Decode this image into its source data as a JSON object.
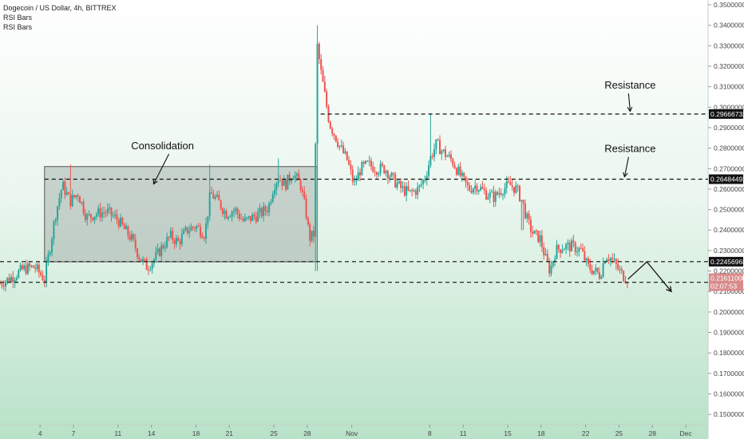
{
  "chart_data": {
    "type": "candlestick",
    "title": "Dogecoin / US Dollar, 4h, BITTREX",
    "indicators": [
      "RSI Bars",
      "RSI Bars"
    ],
    "ylim": [
      0.145,
      0.35
    ],
    "y_ticks": [
      "0.35000000",
      "0.34000000",
      "0.33000000",
      "0.32000000",
      "0.31000000",
      "0.30000000",
      "0.29000000",
      "0.28000000",
      "0.27000000",
      "0.26000000",
      "0.25000000",
      "0.24000000",
      "0.23000000",
      "0.22000000",
      "0.21000000",
      "0.20000000",
      "0.19000000",
      "0.18000000",
      "0.17000000",
      "0.16000000",
      "0.15000000"
    ],
    "x_ticks": [
      {
        "label": "4",
        "day": 0
      },
      {
        "label": "7",
        "day": 3
      },
      {
        "label": "11",
        "day": 7
      },
      {
        "label": "14",
        "day": 10
      },
      {
        "label": "18",
        "day": 14
      },
      {
        "label": "21",
        "day": 17
      },
      {
        "label": "25",
        "day": 21
      },
      {
        "label": "28",
        "day": 24
      },
      {
        "label": "Nov",
        "day": 28
      },
      {
        "label": "8",
        "day": 35
      },
      {
        "label": "11",
        "day": 38
      },
      {
        "label": "15",
        "day": 42
      },
      {
        "label": "18",
        "day": 45
      },
      {
        "label": "22",
        "day": 49
      },
      {
        "label": "25",
        "day": 52
      },
      {
        "label": "28",
        "day": 55
      },
      {
        "label": "Dec",
        "day": 58
      }
    ],
    "x_range_days": [
      -3.6,
      60
    ],
    "price_path": [
      [
        -3.6,
        0.214
      ],
      [
        -2.5,
        0.217
      ],
      [
        -1.5,
        0.221
      ],
      [
        -0.5,
        0.222
      ],
      [
        0.4,
        0.216
      ],
      [
        0.9,
        0.232
      ],
      [
        1.4,
        0.248
      ],
      [
        2,
        0.262
      ],
      [
        2.7,
        0.254
      ],
      [
        3.4,
        0.258
      ],
      [
        4.2,
        0.246
      ],
      [
        5,
        0.248
      ],
      [
        6,
        0.249
      ],
      [
        7,
        0.245
      ],
      [
        7.6,
        0.24
      ],
      [
        8.2,
        0.236
      ],
      [
        9,
        0.226
      ],
      [
        9.6,
        0.222
      ],
      [
        10.3,
        0.226
      ],
      [
        11,
        0.232
      ],
      [
        11.7,
        0.237
      ],
      [
        12.4,
        0.234
      ],
      [
        13.2,
        0.24
      ],
      [
        14,
        0.242
      ],
      [
        14.8,
        0.238
      ],
      [
        15.3,
        0.258
      ],
      [
        16,
        0.254
      ],
      [
        16.7,
        0.248
      ],
      [
        17.5,
        0.25
      ],
      [
        18.3,
        0.244
      ],
      [
        19,
        0.246
      ],
      [
        19.8,
        0.248
      ],
      [
        20.5,
        0.251
      ],
      [
        21,
        0.262
      ],
      [
        21.4,
        0.266
      ],
      [
        22,
        0.262
      ],
      [
        22.7,
        0.268
      ],
      [
        23.4,
        0.262
      ],
      [
        23.9,
        0.248
      ],
      [
        24.2,
        0.236
      ],
      [
        24.6,
        0.238
      ],
      [
        24.9,
        0.33
      ],
      [
        25.2,
        0.318
      ],
      [
        25.6,
        0.305
      ],
      [
        26,
        0.292
      ],
      [
        26.5,
        0.286
      ],
      [
        27,
        0.28
      ],
      [
        27.6,
        0.274
      ],
      [
        28.2,
        0.262
      ],
      [
        28.8,
        0.27
      ],
      [
        29.5,
        0.272
      ],
      [
        30.2,
        0.27
      ],
      [
        31,
        0.27
      ],
      [
        31.8,
        0.264
      ],
      [
        32.5,
        0.26
      ],
      [
        33.2,
        0.258
      ],
      [
        34,
        0.26
      ],
      [
        34.6,
        0.266
      ],
      [
        35.1,
        0.276
      ],
      [
        35.6,
        0.282
      ],
      [
        36.2,
        0.278
      ],
      [
        37,
        0.274
      ],
      [
        37.8,
        0.266
      ],
      [
        38.5,
        0.26
      ],
      [
        39.2,
        0.262
      ],
      [
        40,
        0.258
      ],
      [
        40.8,
        0.256
      ],
      [
        41.5,
        0.26
      ],
      [
        42.2,
        0.262
      ],
      [
        42.8,
        0.26
      ],
      [
        43.3,
        0.254
      ],
      [
        43.8,
        0.244
      ],
      [
        44.3,
        0.238
      ],
      [
        44.9,
        0.236
      ],
      [
        45.4,
        0.226
      ],
      [
        45.8,
        0.22
      ],
      [
        46.3,
        0.23
      ],
      [
        47,
        0.232
      ],
      [
        47.8,
        0.232
      ],
      [
        48.6,
        0.23
      ],
      [
        49.2,
        0.222
      ],
      [
        49.8,
        0.22
      ],
      [
        50.3,
        0.218
      ],
      [
        50.8,
        0.228
      ],
      [
        51.3,
        0.226
      ],
      [
        51.8,
        0.222
      ],
      [
        52.3,
        0.218
      ],
      [
        52.8,
        0.216
      ]
    ],
    "consolidation_box": {
      "x_from": 0.4,
      "x_to": 24.9,
      "y_from": 0.2245,
      "y_to": 0.271
    },
    "horizontal_levels": [
      {
        "value": 0.29666732,
        "label": "0.29666732",
        "from_day": 25.2
      },
      {
        "value": 0.26484492,
        "label": "0.26484492",
        "from_day": 0.4
      },
      {
        "value": 0.22456968,
        "label": "0.22456968",
        "from_day": -3.6
      },
      {
        "value": 0.2145,
        "label": "",
        "from_day": -3.6
      }
    ],
    "current_price": {
      "value": 0.21611,
      "label": "0.21611000",
      "countdown": "02:07:53"
    },
    "projection": [
      [
        52.8,
        0.216
      ],
      [
        54.5,
        0.2245
      ],
      [
        56.7,
        0.21
      ]
    ],
    "annotations": [
      {
        "text": "Consolidation",
        "day": 11,
        "price": 0.2795,
        "arrow_to": [
          10.2,
          0.2625
        ]
      },
      {
        "text": "Resistance",
        "day": 53,
        "price": 0.309,
        "arrow_to": [
          53,
          0.298
        ]
      },
      {
        "text": "Resistance",
        "day": 53,
        "price": 0.278,
        "arrow_to": [
          52.5,
          0.266
        ]
      }
    ],
    "colors": {
      "up": "#26a69a",
      "down": "#ef5350",
      "box_fill": "#9aa5a0",
      "line": "#111111",
      "current_tag": "#d98b8b",
      "level_tag": "#111111"
    }
  }
}
